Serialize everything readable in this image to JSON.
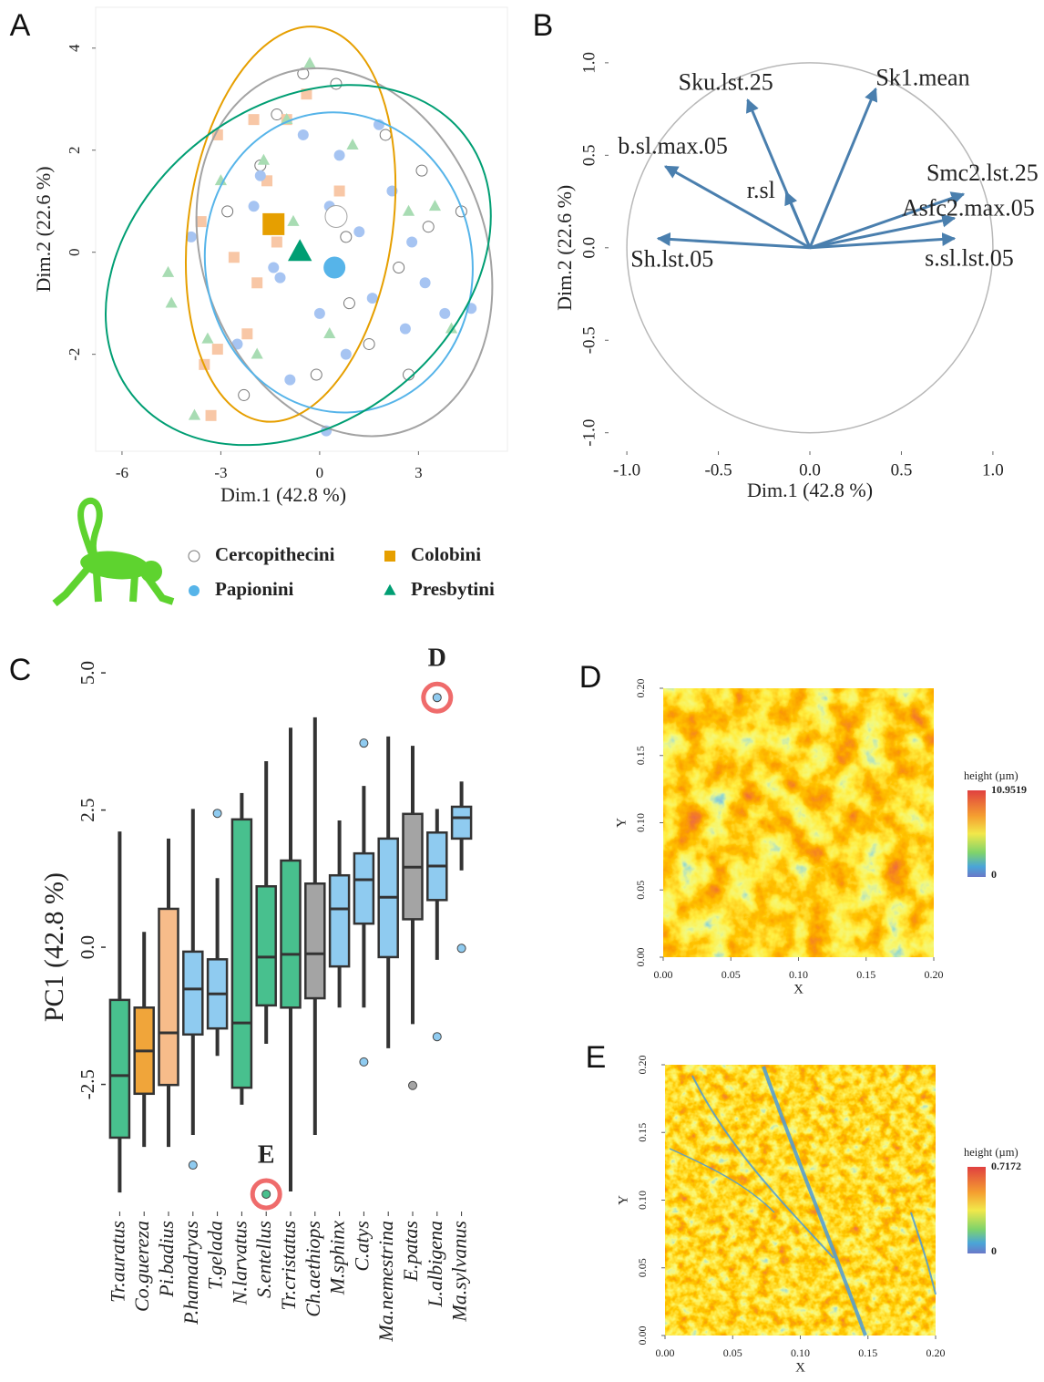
{
  "chart_data": [
    {
      "type": "scatter",
      "panel": "A",
      "xlabel": "Dim.1 (42.8 %)",
      "ylabel": "Dim.2 (22.6 %)",
      "xlim": [
        -6.8,
        5.7
      ],
      "ylim": [
        -3.9,
        4.8
      ],
      "xticks": [
        -6,
        -3,
        0,
        3
      ],
      "yticks": [
        -2,
        0,
        2,
        4
      ],
      "series": [
        {
          "name": "Cercopithecini",
          "marker": "circle",
          "color": "#a3a3a3",
          "fill": "#ffffff",
          "point_color": "#ffffff",
          "x": [
            -0.5,
            -2.3,
            -2.8,
            -1.3,
            0.8,
            2.0,
            2.4,
            3.1,
            3.3,
            4.3,
            1.5,
            -0.1,
            0.9,
            2.7,
            -1.8,
            0.5
          ],
          "y": [
            3.5,
            -2.8,
            0.8,
            2.7,
            0.3,
            2.3,
            -0.3,
            1.6,
            0.5,
            0.8,
            -1.8,
            -2.4,
            -1.0,
            -2.4,
            1.7,
            3.3
          ],
          "centroid": {
            "x": 0.5,
            "y": 0.7
          },
          "ellipse": {
            "cx": 0.75,
            "cy": 0.0,
            "rx": 4.3,
            "ry": 3.7,
            "angle": -20
          }
        },
        {
          "name": "Colobini",
          "marker": "square",
          "color": "#e69f00",
          "fill": "#e69f00",
          "point_color": "#f8c7a6",
          "x": [
            -3.1,
            -2.0,
            -1.6,
            -1.3,
            -0.4,
            -3.6,
            -3.5,
            -2.6,
            -1.0,
            -2.2,
            -3.3,
            0.6,
            -1.9,
            -3.1
          ],
          "y": [
            2.3,
            2.6,
            1.4,
            0.2,
            3.1,
            0.6,
            -2.2,
            -0.1,
            2.6,
            -1.6,
            -3.2,
            1.2,
            -0.6,
            -1.9
          ],
          "centroid": {
            "x": -1.4,
            "y": 0.55
          },
          "ellipse": {
            "cx": -0.88,
            "cy": 0.55,
            "rx": 3.1,
            "ry": 3.9,
            "angle": 8
          }
        },
        {
          "name": "Papionini",
          "marker": "circle",
          "color": "#56b4e9",
          "fill": "#56b4e9",
          "point_color": "#a6c4f2",
          "x": [
            -3.9,
            -2.5,
            -1.8,
            -1.2,
            -0.5,
            0.0,
            0.3,
            0.8,
            1.2,
            1.6,
            2.2,
            2.6,
            3.2,
            3.8,
            4.6,
            -0.9,
            0.6,
            1.8,
            -2.0,
            0.2,
            2.8,
            -1.4
          ],
          "y": [
            0.3,
            -1.8,
            1.5,
            -0.5,
            2.3,
            -1.2,
            0.9,
            -2.0,
            0.4,
            -0.9,
            1.2,
            -1.5,
            -0.6,
            -1.2,
            -1.1,
            -2.5,
            1.9,
            2.5,
            0.9,
            -3.5,
            0.2,
            -0.3
          ],
          "centroid": {
            "x": 0.45,
            "y": -0.3
          },
          "ellipse": {
            "cx": 0.58,
            "cy": -0.2,
            "rx": 4.05,
            "ry": 2.95,
            "angle": -10
          }
        },
        {
          "name": "Presbytini",
          "marker": "triangle",
          "color": "#009e73",
          "fill": "#009e73",
          "point_color": "#a8dcb3",
          "x": [
            -0.3,
            -4.6,
            -4.5,
            -3.0,
            -3.4,
            -1.7,
            -1.0,
            1.0,
            2.7,
            3.5,
            4.0,
            -3.8,
            -1.9,
            0.3,
            -0.8
          ],
          "y": [
            3.7,
            -0.4,
            -1.0,
            1.4,
            -1.7,
            1.8,
            2.6,
            2.1,
            0.8,
            0.9,
            -1.5,
            -3.2,
            -2.0,
            -1.6,
            0.6
          ],
          "centroid": {
            "x": -0.6,
            "y": 0.0
          },
          "ellipse": {
            "cx": -0.65,
            "cy": -0.25,
            "rx": 6.4,
            "ry": 3.1,
            "angle": -38
          }
        }
      ]
    },
    {
      "type": "arrows",
      "panel": "B",
      "xlabel": "Dim.1 (42.8 %)",
      "ylabel": "Dim.2 (22.6 %)",
      "color": "#4a7fae",
      "xlim": [
        -1.1,
        1.1
      ],
      "ylim": [
        -1.1,
        1.3
      ],
      "xticks": [
        {
          "value": -1,
          "label": "-1.0"
        },
        -0.5,
        {
          "value": 0,
          "label": "0.0"
        },
        0.5,
        {
          "value": 1,
          "label": "1.0"
        }
      ],
      "yticks": [
        {
          "value": -1,
          "label": "-1.0"
        },
        -0.5,
        {
          "value": 0,
          "label": "0.0"
        },
        0.5,
        {
          "value": 1,
          "label": "1.0"
        }
      ],
      "variables": [
        {
          "name": "Sk1.mean",
          "x": 0.36,
          "y": 0.86
        },
        {
          "name": "Sku.lst.25",
          "x": -0.34,
          "y": 0.8
        },
        {
          "name": "b.sl.max.05",
          "x": -0.79,
          "y": 0.44
        },
        {
          "name": "r.sl",
          "x": -0.13,
          "y": 0.3
        },
        {
          "name": "Smc2.lst.25",
          "x": 0.84,
          "y": 0.29
        },
        {
          "name": "Asfc2.max.05",
          "x": 0.79,
          "y": 0.16
        },
        {
          "name": "s.sl.lst.05",
          "x": 0.79,
          "y": 0.05
        },
        {
          "name": "Sh.lst.05",
          "x": -0.83,
          "y": 0.05
        }
      ]
    },
    {
      "type": "box",
      "panel": "C",
      "ylabel": "PC1 (42.8 %)",
      "ylim": [
        -4.75,
        5.55
      ],
      "yticks": [
        -2.5,
        {
          "value": 0,
          "label": "0.0"
        },
        2.5,
        {
          "value": 5,
          "label": "5.0"
        }
      ],
      "categories": [
        "Tr.auratus",
        "Co.guereza",
        "Pi.badius",
        "P.hamadryas",
        "T.gelada",
        "N.larvatus",
        "S.entellus",
        "Tr.cristatus",
        "Ch.aethiops",
        "M.sphinx",
        "C.atys",
        "Ma.nemestrina",
        "E.patas",
        "L.albigena",
        "Ma.sylvanus"
      ],
      "boxes": [
        {
          "min": -4.47,
          "q1": -3.47,
          "median": -2.34,
          "q3": -0.96,
          "max": 2.11,
          "color": "#48c08e",
          "outliers": []
        },
        {
          "min": -3.64,
          "q1": -2.67,
          "median": -1.89,
          "q3": -1.1,
          "max": 0.28,
          "color": "#f0a53a",
          "outliers": []
        },
        {
          "min": -3.64,
          "q1": -2.51,
          "median": -1.56,
          "q3": 0.7,
          "max": 1.98,
          "color": "#f7bc8a",
          "outliers": []
        },
        {
          "min": -3.42,
          "q1": -1.59,
          "median": -0.76,
          "q3": -0.08,
          "max": 2.52,
          "color": "#8fcbf0",
          "outliers": [
            -3.97
          ]
        },
        {
          "min": -1.98,
          "q1": -1.48,
          "median": -0.85,
          "q3": -0.22,
          "max": 1.26,
          "color": "#8fcbf0",
          "outliers": [
            2.44
          ]
        },
        {
          "min": -2.87,
          "q1": -2.56,
          "median": -1.38,
          "q3": 2.33,
          "max": 2.81,
          "color": "#48c08e",
          "outliers": []
        },
        {
          "min": -1.76,
          "q1": -1.06,
          "median": -0.18,
          "q3": 1.11,
          "max": 3.39,
          "color": "#48c08e",
          "outliers": [
            {
              "value": -4.5,
              "annotation": "E"
            }
          ]
        },
        {
          "min": -4.45,
          "q1": -1.1,
          "median": -0.13,
          "q3": 1.58,
          "max": 4.0,
          "color": "#48c08e",
          "outliers": []
        },
        {
          "min": -3.42,
          "q1": -0.93,
          "median": -0.12,
          "q3": 1.16,
          "max": 4.19,
          "color": "#a4a4a4",
          "outliers": []
        },
        {
          "min": -1.1,
          "q1": -0.35,
          "median": 0.7,
          "q3": 1.31,
          "max": 2.31,
          "color": "#8fcbf0",
          "outliers": []
        },
        {
          "min": -1.1,
          "q1": 0.43,
          "median": 1.23,
          "q3": 1.71,
          "max": 2.94,
          "color": "#8fcbf0",
          "outliers": [
            3.72,
            -2.09
          ]
        },
        {
          "min": -1.84,
          "q1": -0.18,
          "median": 0.91,
          "q3": 1.98,
          "max": 3.84,
          "color": "#8fcbf0",
          "outliers": []
        },
        {
          "min": -1.4,
          "q1": 0.51,
          "median": 1.46,
          "q3": 2.43,
          "max": 3.67,
          "color": "#a4a4a4",
          "outliers": [
            -2.52
          ]
        },
        {
          "min": -0.23,
          "q1": 0.86,
          "median": 1.48,
          "q3": 2.09,
          "max": 2.52,
          "color": "#8fcbf0",
          "outliers": [
            {
              "value": 4.55,
              "annotation": "D"
            },
            -1.63
          ]
        },
        {
          "min": 1.4,
          "q1": 1.98,
          "median": 2.36,
          "q3": 2.56,
          "max": 3.02,
          "color": "#8fcbf0",
          "outliers": [
            -0.02
          ]
        }
      ]
    },
    {
      "type": "heatmap",
      "panel": "D",
      "xlabel": "X",
      "ylabel": "Y",
      "colorbar_label": "height (µm)",
      "zlim": [
        0,
        10.9519
      ],
      "xlim": [
        0,
        0.2
      ],
      "ylim": [
        0,
        0.2
      ],
      "xticks": [
        {
          "value": 0,
          "label": "0.00"
        },
        0.05,
        {
          "value": 0.1,
          "label": "0.10"
        },
        0.15,
        {
          "value": 0.2,
          "label": "0.20"
        }
      ],
      "yticks": [
        {
          "value": 0,
          "label": "0.00"
        },
        0.05,
        {
          "value": 0.1,
          "label": "0.10"
        },
        0.15,
        {
          "value": 0.2,
          "label": "0.20"
        }
      ]
    },
    {
      "type": "heatmap",
      "panel": "E",
      "xlabel": "X",
      "ylabel": "Y",
      "colorbar_label": "height (µm)",
      "zlim": [
        0,
        0.7172
      ],
      "xlim": [
        0,
        0.2
      ],
      "ylim": [
        0,
        0.2
      ],
      "xticks": [
        {
          "value": 0,
          "label": "0.00"
        },
        0.05,
        {
          "value": 0.1,
          "label": "0.10"
        },
        0.15,
        {
          "value": 0.2,
          "label": "0.20"
        }
      ],
      "yticks": [
        {
          "value": 0,
          "label": "0.00"
        },
        0.05,
        {
          "value": 0.1,
          "label": "0.10"
        },
        0.15,
        {
          "value": 0.2,
          "label": "0.20"
        }
      ]
    }
  ]
}
